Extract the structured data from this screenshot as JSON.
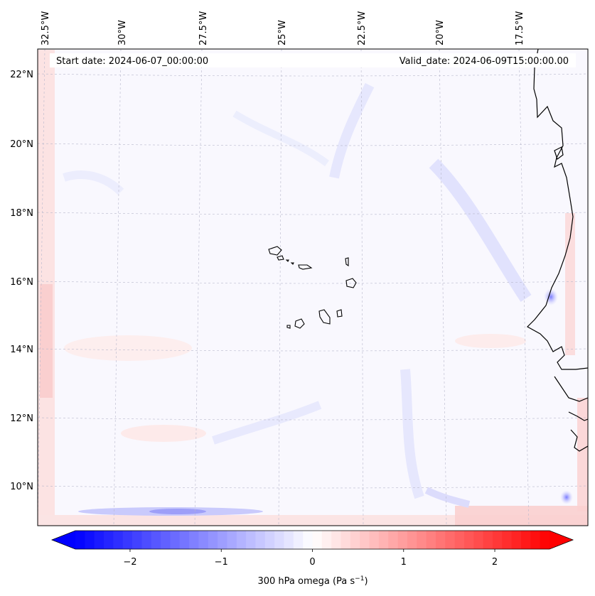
{
  "map": {
    "start_label": "Start date: 2024-06-07_00:00:00",
    "valid_label": "Valid_date: 2024-06-09T15:00:00.00",
    "lon_ticks": [
      "32.5°W",
      "30°W",
      "27.5°W",
      "25°W",
      "22.5°W",
      "20°W",
      "17.5°W"
    ],
    "lat_ticks": [
      "22°N",
      "20°N",
      "18°N",
      "16°N",
      "14°N",
      "12°N",
      "10°N"
    ],
    "colorbar": {
      "label": "300 hPa omega (Pa s",
      "label_sup": "−1",
      "label_end": ")",
      "tick_labels": [
        "−2",
        "−1",
        "0",
        "1",
        "2"
      ],
      "ticks": [
        -2,
        -1,
        0,
        1,
        2
      ],
      "range": [
        -2.6,
        2.6
      ],
      "colors": {
        "min": "#0000ff",
        "mid": "#ffffff",
        "max": "#ff0000"
      }
    }
  }
}
